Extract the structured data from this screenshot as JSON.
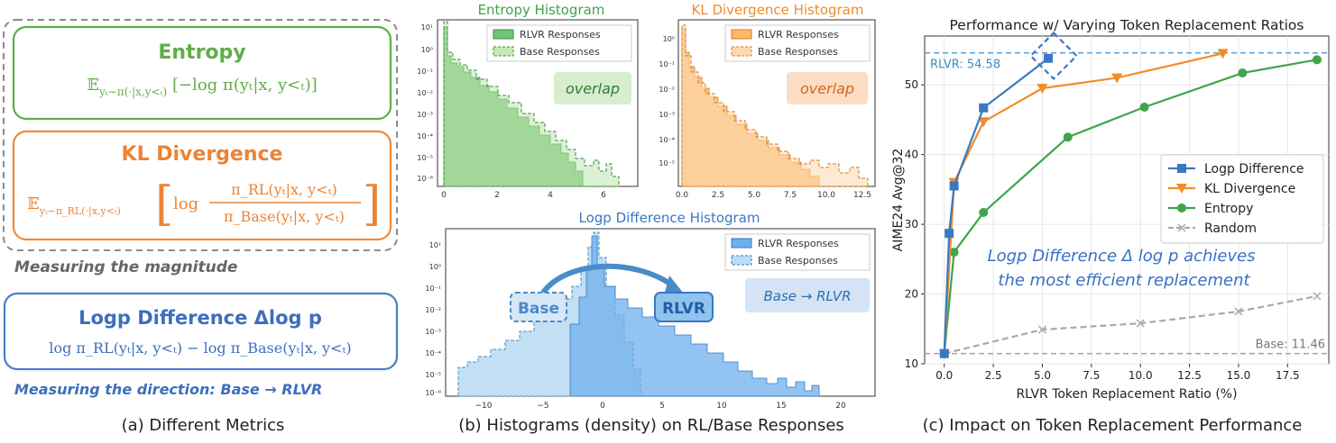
{
  "panel_a": {
    "entropy": {
      "title": "Entropy",
      "formula": "𝔼 y_t∼π(·|x,y<t) [−log π(y_t|x, y<t)]"
    },
    "kl": {
      "title": "KL Divergence",
      "formula": "𝔼 y_t∼π_RL(·|x,y<t) [ log π_RL(y_t|x, y<t) / π_Base(y_t|x, y<t) ]"
    },
    "magnitude_note": "Measuring the magnitude",
    "logp": {
      "title": "Logp Difference Δlog p",
      "formula": "log π_RL(y_t|x, y<t) − log π_Base(y_t|x, y<t)"
    },
    "direction_note": "Measuring the direction: Base → RLVR",
    "caption": "(a) Different Metrics"
  },
  "panel_b": {
    "caption": "(b) Histograms (density) on RL/Base Responses",
    "legend": {
      "rlvr": "RLVR Responses",
      "base": "Base Responses"
    },
    "entropy_hist": {
      "title": "Entropy Histogram",
      "tag": "overlap",
      "xticks": [
        "0",
        "2",
        "4",
        "6"
      ]
    },
    "kl_hist": {
      "title": "KL Divergence Histogram",
      "tag": "overlap",
      "xticks": [
        "0.0",
        "2.5",
        "5.0",
        "7.5",
        "10.0",
        "12.5"
      ]
    },
    "logp_hist": {
      "title": "Logp Difference Histogram",
      "tag": "Base → RLVR",
      "base_label": "Base",
      "rlvr_label": "RLVR",
      "xticks": [
        "−10",
        "−5",
        "0",
        "5",
        "10",
        "15",
        "20"
      ]
    }
  },
  "chart_data": {
    "type": "line",
    "title": "Performance w/ Varying Token Replacement Ratios",
    "xlabel": "RLVR Token Replacement Ratio (%)",
    "ylabel": "AIME24 Avg@32",
    "xlim": [
      -1,
      19.6
    ],
    "ylim": [
      10,
      57
    ],
    "xticks": [
      "0.0",
      "2.5",
      "5.0",
      "7.5",
      "10.0",
      "12.5",
      "15.0",
      "17.5"
    ],
    "yticks": [
      "10",
      "20",
      "30",
      "40",
      "50"
    ],
    "series": [
      {
        "name": "Logp Difference",
        "color": "#3b78c2",
        "marker": "square",
        "x": [
          0,
          0.25,
          0.5,
          2.0,
          5.3
        ],
        "y": [
          11.46,
          28.7,
          35.5,
          46.7,
          53.8
        ]
      },
      {
        "name": "KL Divergence",
        "color": "#f28c28",
        "marker": "triangle",
        "x": [
          0,
          0.5,
          2.0,
          5.0,
          8.8,
          14.2
        ],
        "y": [
          11.46,
          36.0,
          44.7,
          49.5,
          51.0,
          54.5
        ]
      },
      {
        "name": "Entropy",
        "color": "#3fa44a",
        "marker": "circle",
        "x": [
          0,
          0.5,
          2.0,
          6.3,
          10.2,
          15.2,
          19.0
        ],
        "y": [
          11.46,
          26.0,
          31.7,
          42.5,
          46.8,
          51.7,
          53.6
        ]
      },
      {
        "name": "Random",
        "color": "#a9a9a9",
        "marker": "x",
        "x": [
          0,
          5.0,
          10.0,
          15.0,
          19.0
        ],
        "y": [
          11.46,
          14.9,
          15.8,
          17.5,
          19.7
        ]
      }
    ],
    "hlines": [
      {
        "label": "RLVR: 54.58",
        "y": 54.58,
        "color": "#5aa3d6"
      },
      {
        "label": "Base: 11.46",
        "y": 11.46,
        "color": "#a9a9a9"
      }
    ],
    "annotation": "Logp Difference Δ log p achieves the most efficient replacement",
    "caption": "(c) Impact on Token Replacement Performance"
  },
  "colors": {
    "green": "#3fa44a",
    "orange": "#f08c2e",
    "blue": "#3b78c2",
    "gray": "#666666"
  }
}
